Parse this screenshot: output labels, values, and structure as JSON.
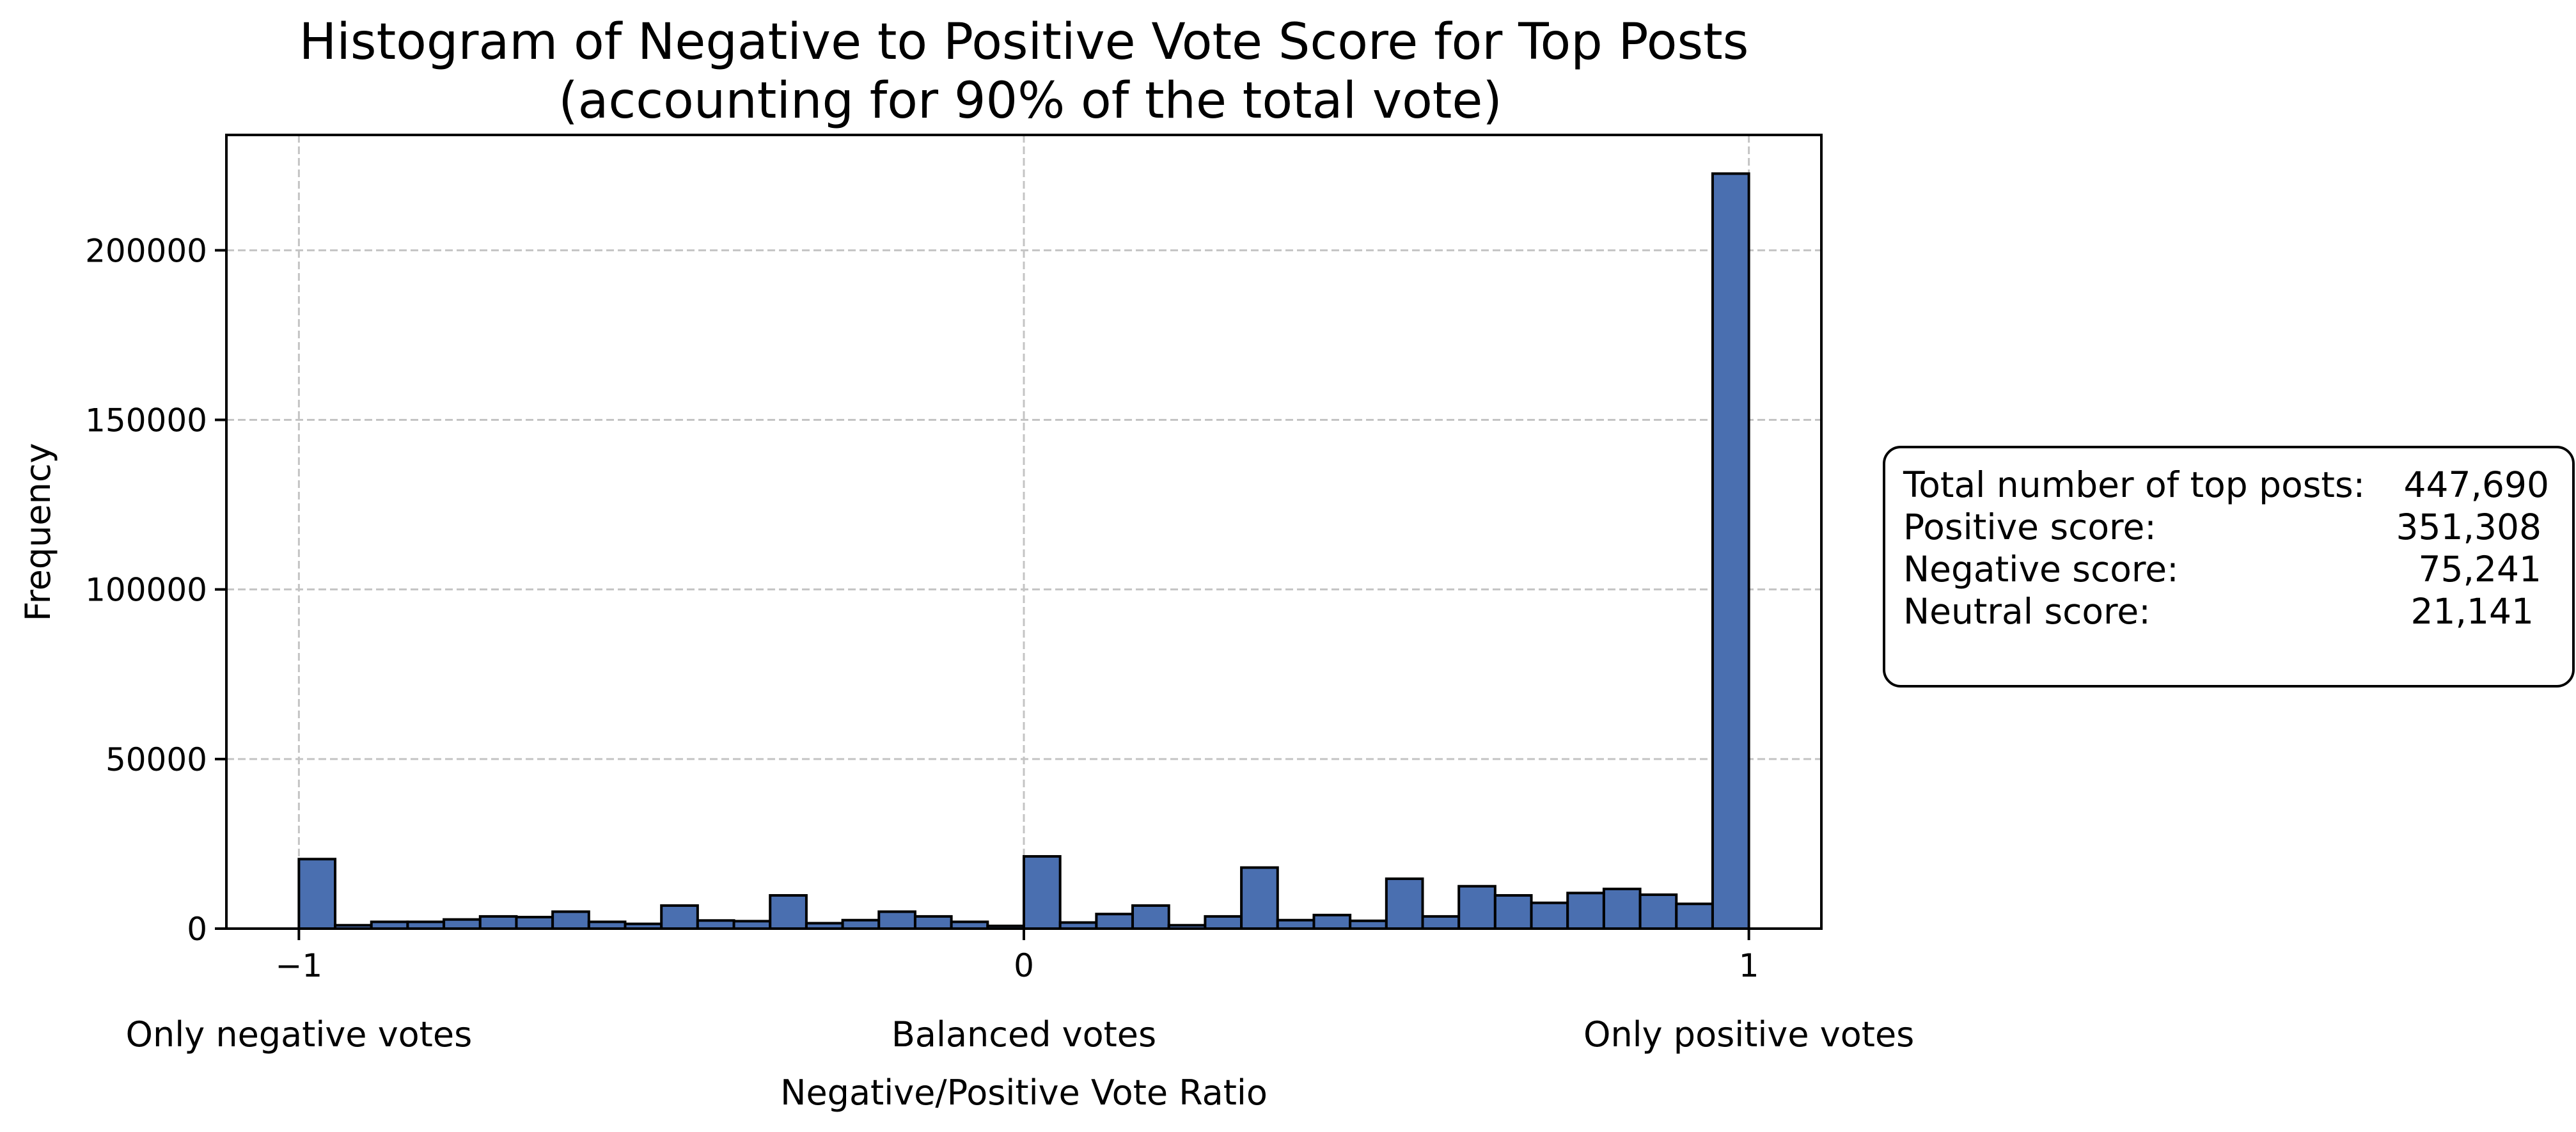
{
  "chart_data": {
    "type": "bar",
    "title": [
      "Histogram of Negative to Positive Vote Score for Top Posts",
      "(accounting for 90% of the total vote)"
    ],
    "xlabel": "Negative/Positive Vote Ratio",
    "ylabel": "Frequency",
    "xlim": [
      -1.1,
      1.1
    ],
    "ylim": [
      0,
      234000
    ],
    "x_ticks": [
      {
        "value": -1,
        "label": "−1"
      },
      {
        "value": 0,
        "label": "0"
      },
      {
        "value": 1,
        "label": "1"
      }
    ],
    "y_ticks": [
      {
        "value": 0,
        "label": "0"
      },
      {
        "value": 50000,
        "label": "50000"
      },
      {
        "value": 100000,
        "label": "100000"
      },
      {
        "value": 150000,
        "label": "150000"
      },
      {
        "value": 200000,
        "label": "200000"
      }
    ],
    "category_labels": [
      {
        "value": -1,
        "label": "Only negative votes"
      },
      {
        "value": 0,
        "label": "Balanced votes"
      },
      {
        "value": 1,
        "label": "Only positive votes"
      }
    ],
    "grid": true,
    "bar_color": "#4a6fb0",
    "bins": {
      "start": -1,
      "end": 1,
      "count": 40
    },
    "values": [
      20500,
      1000,
      2000,
      2000,
      2700,
      3600,
      3400,
      5000,
      2000,
      1400,
      6800,
      2400,
      2200,
      9800,
      1600,
      2500,
      5000,
      3600,
      2000,
      800,
      21300,
      1800,
      4300,
      6800,
      1000,
      3600,
      18000,
      2500,
      4000,
      2300,
      14700,
      3600,
      12500,
      9800,
      7600,
      10500,
      11700,
      10000,
      7300,
      222600
    ]
  },
  "stats": {
    "rows": [
      {
        "label": "Total number of top posts:",
        "value": "447,690"
      },
      {
        "label": "Positive score:",
        "value": "351,308"
      },
      {
        "label": "Negative score:",
        "value": "75,241"
      },
      {
        "label": "Neutral score:",
        "value": "21,141"
      }
    ]
  }
}
